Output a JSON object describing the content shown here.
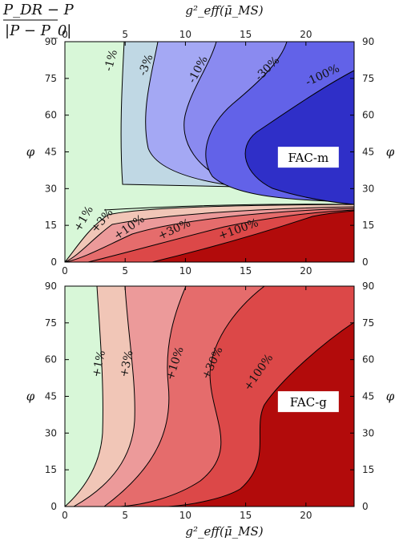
{
  "chart_data": {
    "type": "contour",
    "title_fraction": {
      "numerator": "P_DR − P",
      "denominator": "|P − P_0|"
    },
    "xlabel": "g²_eff(μ̄_MS)",
    "ylabel": "φ",
    "xlim": [
      0,
      24
    ],
    "ylim": [
      0,
      90
    ],
    "x_ticks": [
      0,
      5,
      10,
      15,
      20
    ],
    "y_ticks": [
      0,
      15,
      30,
      45,
      60,
      75,
      90
    ],
    "panels": [
      {
        "legend": "FAC-m",
        "legend_position": "right-middle",
        "contours": [
          {
            "label": "-1%"
          },
          {
            "label": "-3%"
          },
          {
            "label": "-10%"
          },
          {
            "label": "-30%"
          },
          {
            "label": "-100%"
          },
          {
            "label": "+1%"
          },
          {
            "label": "+3%"
          },
          {
            "label": "+10%"
          },
          {
            "label": "+30%"
          },
          {
            "label": "+100%"
          }
        ]
      },
      {
        "legend": "FAC-g",
        "legend_position": "right-middle",
        "contours": [
          {
            "label": "+1%"
          },
          {
            "label": "+3%"
          },
          {
            "label": "+10%"
          },
          {
            "label": "+30%"
          },
          {
            "label": "+100%"
          }
        ]
      }
    ],
    "colors": {
      "base": "#d8f7d8",
      "neg": [
        "#c0d8e4",
        "#a4a8f4",
        "#8a8af0",
        "#6262e8",
        "#2f2fc8"
      ],
      "pos": [
        "#f1c6b7",
        "#ec9a9a",
        "#e56c6c",
        "#dc4848",
        "#b20b0b"
      ]
    }
  }
}
